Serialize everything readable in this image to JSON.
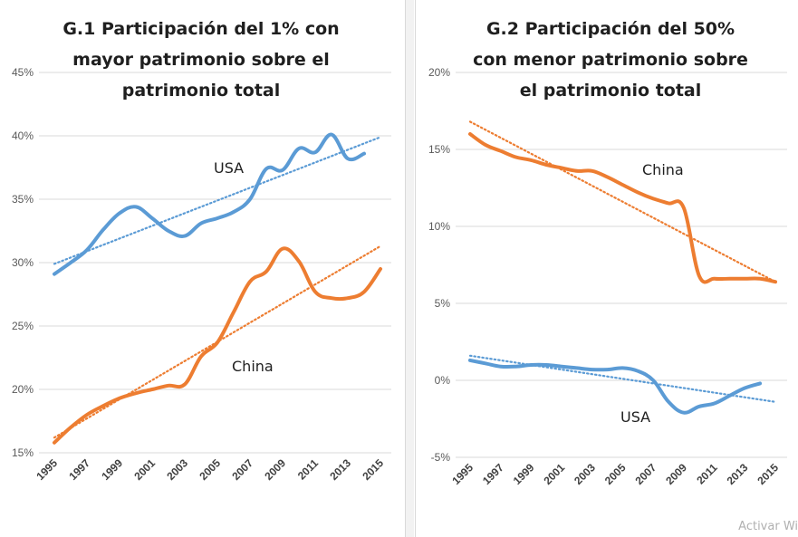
{
  "watermark": "Activar Wi",
  "chart_data": [
    {
      "type": "line",
      "title_lines": [
        "G.1 Participación del 1% con",
        "mayor patrimonio sobre el",
        "patrimonio total"
      ],
      "ylim": [
        15,
        45
      ],
      "yticks": [
        15,
        20,
        25,
        30,
        35,
        40,
        45
      ],
      "ytick_labels": [
        "15%",
        "20%",
        "25%",
        "30%",
        "35%",
        "40%",
        "45%"
      ],
      "x_range": [
        1995,
        2015
      ],
      "xticks": [
        "1995",
        "1997",
        "1999",
        "2001",
        "2003",
        "2005",
        "2007",
        "2009",
        "2011",
        "2013",
        "2015"
      ],
      "grid": true,
      "legend": "none",
      "series": [
        {
          "name": "USA",
          "color": "#5b9bd5",
          "x": [
            1995,
            1996,
            1997,
            1998,
            1999,
            2000,
            2001,
            2002,
            2003,
            2004,
            2005,
            2006,
            2007,
            2008,
            2009,
            2010,
            2011,
            2012,
            2013,
            2014
          ],
          "values": [
            29.1,
            30.0,
            31.0,
            32.6,
            33.9,
            34.4,
            33.5,
            32.5,
            32.1,
            33.1,
            33.5,
            34.0,
            35.0,
            37.4,
            37.3,
            39.0,
            38.7,
            40.1,
            38.2,
            38.6
          ],
          "trend": [
            29.9,
            39.9
          ]
        },
        {
          "name": "China",
          "color": "#ed7d31",
          "x": [
            1995,
            1996,
            1997,
            1998,
            1999,
            2000,
            2001,
            2002,
            2003,
            2004,
            2005,
            2006,
            2007,
            2008,
            2009,
            2010,
            2011,
            2012,
            2013,
            2014,
            2015
          ],
          "values": [
            15.8,
            17.0,
            18.0,
            18.7,
            19.3,
            19.7,
            20.0,
            20.3,
            20.4,
            22.6,
            23.7,
            26.1,
            28.5,
            29.3,
            31.1,
            30.1,
            27.7,
            27.2,
            27.2,
            27.7,
            29.5
          ],
          "trend": [
            16.2,
            31.3
          ]
        }
      ]
    },
    {
      "type": "line",
      "title_lines": [
        "G.2 Participación del 50%",
        "con menor patrimonio sobre",
        "el patrimonio total"
      ],
      "ylim": [
        -5,
        20
      ],
      "yticks": [
        -5,
        0,
        5,
        10,
        15,
        20
      ],
      "ytick_labels": [
        "-5%",
        "0%",
        "5%",
        "10%",
        "15%",
        "20%"
      ],
      "x_range": [
        1995,
        2015
      ],
      "xticks": [
        "1995",
        "1997",
        "1999",
        "2001",
        "2003",
        "2005",
        "2007",
        "2009",
        "2011",
        "2013",
        "2015"
      ],
      "grid": true,
      "legend": "none",
      "series": [
        {
          "name": "China",
          "color": "#ed7d31",
          "x": [
            1995,
            1996,
            1997,
            1998,
            1999,
            2000,
            2001,
            2002,
            2003,
            2004,
            2005,
            2006,
            2007,
            2008,
            2009,
            2010,
            2011,
            2012,
            2013,
            2014,
            2015
          ],
          "values": [
            16.0,
            15.3,
            14.9,
            14.5,
            14.3,
            14.0,
            13.8,
            13.6,
            13.6,
            13.2,
            12.7,
            12.2,
            11.8,
            11.5,
            11.2,
            6.8,
            6.6,
            6.6,
            6.6,
            6.6,
            6.4
          ],
          "trend": [
            16.8,
            6.4
          ]
        },
        {
          "name": "USA",
          "color": "#5b9bd5",
          "x": [
            1995,
            1996,
            1997,
            1998,
            1999,
            2000,
            2001,
            2002,
            2003,
            2004,
            2005,
            2006,
            2007,
            2008,
            2009,
            2010,
            2011,
            2012,
            2013,
            2014
          ],
          "values": [
            1.3,
            1.1,
            0.9,
            0.9,
            1.0,
            1.0,
            0.9,
            0.8,
            0.7,
            0.7,
            0.8,
            0.6,
            0.0,
            -1.4,
            -2.1,
            -1.7,
            -1.5,
            -1.0,
            -0.5,
            -0.2
          ],
          "trend": [
            1.6,
            -1.4
          ]
        }
      ]
    }
  ],
  "labels": {
    "g1_usa": "USA",
    "g1_china": "China",
    "g2_china": "China",
    "g2_usa": "USA"
  }
}
